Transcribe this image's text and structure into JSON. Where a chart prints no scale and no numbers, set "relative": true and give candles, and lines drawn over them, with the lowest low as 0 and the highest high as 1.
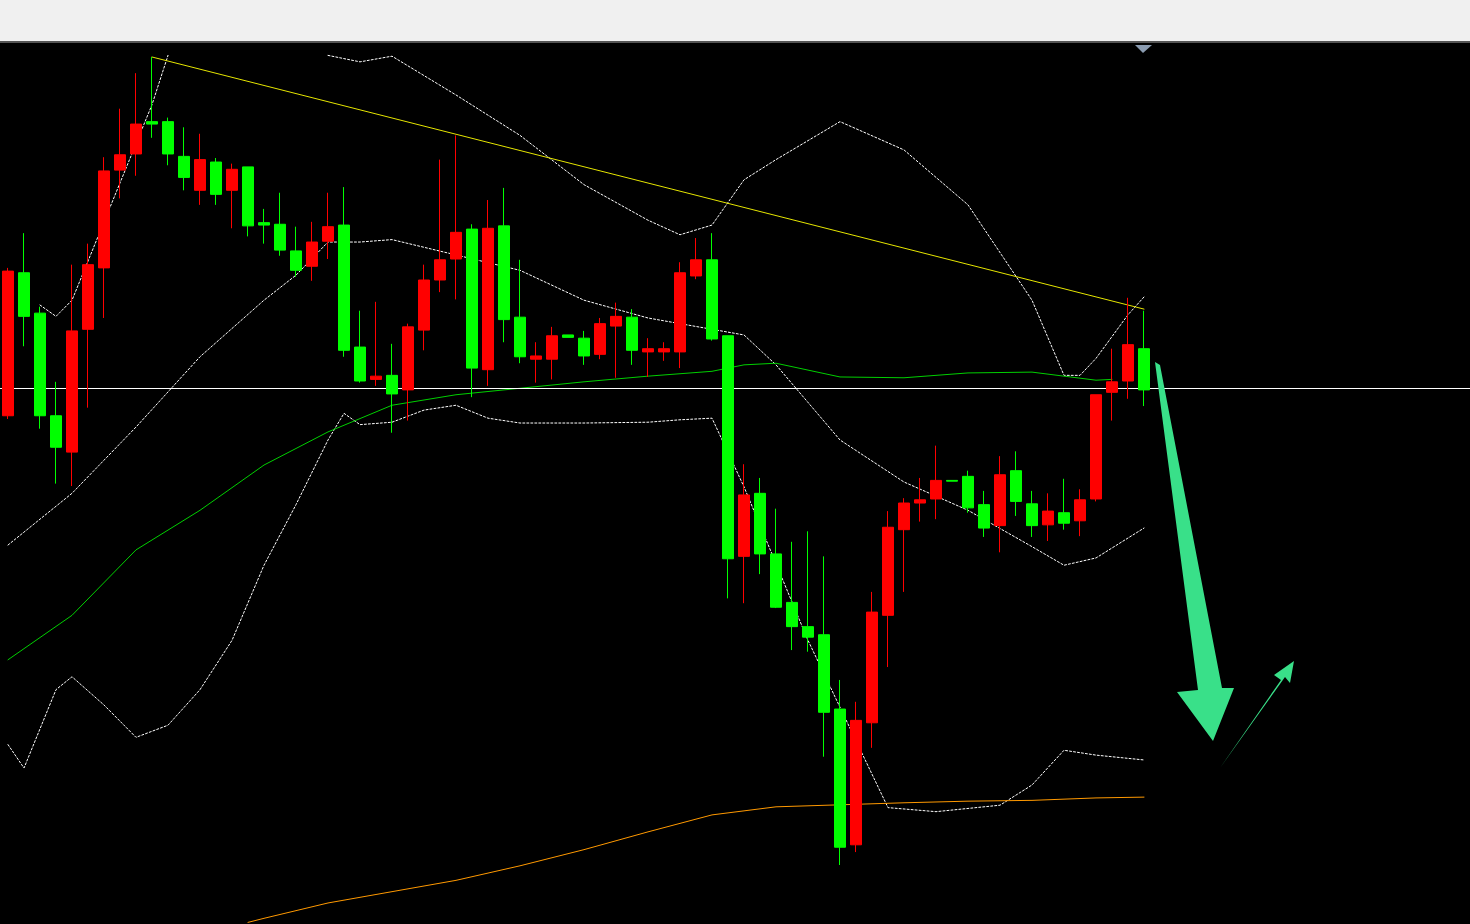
{
  "chart_data": {
    "type": "candlestick",
    "relative": true,
    "marker": "none",
    "categories": [
      null,
      null,
      null,
      null,
      null,
      null,
      null,
      null,
      null,
      null,
      null,
      null,
      null,
      null,
      null,
      null,
      null,
      null,
      null,
      null,
      null,
      null,
      null,
      null,
      null,
      null,
      null,
      null,
      null,
      null,
      null,
      null,
      null,
      null,
      null,
      null,
      null,
      null,
      null,
      null,
      null,
      null,
      null,
      null,
      null,
      null,
      null,
      null,
      null,
      null,
      null,
      null,
      null,
      null,
      null,
      null,
      null,
      null,
      null,
      null,
      null,
      null,
      null,
      null,
      null,
      null,
      null,
      null,
      null,
      null,
      null,
      null
    ],
    "series": [
      {
        "ohlc": [
          [
            0.556,
            0.739,
            0.552,
            0.735
          ],
          [
            0.733,
            0.782,
            0.642,
            0.679
          ],
          [
            0.683,
            0.691,
            0.54,
            0.556
          ],
          [
            0.556,
            0.598,
            0.472,
            0.517
          ],
          [
            0.511,
            0.743,
            0.469,
            0.661
          ],
          [
            0.663,
            0.769,
            0.566,
            0.743
          ],
          [
            0.739,
            0.876,
            0.677,
            0.859
          ],
          [
            0.86,
            0.936,
            0.825,
            0.879
          ],
          [
            0.88,
            0.98,
            0.853,
            0.917
          ],
          [
            0.92,
            1,
            0.9,
            0.917
          ],
          [
            0.92,
            0.925,
            0.866,
            0.88
          ],
          [
            0.877,
            0.913,
            0.835,
            0.851
          ],
          [
            0.835,
            0.905,
            0.817,
            0.873
          ],
          [
            0.87,
            0.875,
            0.817,
            0.83
          ],
          [
            0.835,
            0.868,
            0.788,
            0.861
          ],
          [
            0.864,
            0.864,
            0.778,
            0.791
          ],
          [
            0.795,
            0.812,
            0.769,
            0.792
          ],
          [
            0.793,
            0.832,
            0.754,
            0.761
          ],
          [
            0.76,
            0.79,
            0.728,
            0.736
          ],
          [
            0.741,
            0.796,
            0.723,
            0.771
          ],
          [
            0.772,
            0.832,
            0.75,
            0.79
          ],
          [
            0.792,
            0.839,
            0.629,
            0.637
          ],
          [
            0.641,
            0.686,
            0.597,
            0.599
          ],
          [
            0.601,
            0.697,
            0.593,
            0.605
          ],
          [
            0.606,
            0.645,
            0.535,
            0.583
          ],
          [
            0.588,
            0.67,
            0.55,
            0.666
          ],
          [
            0.662,
            0.743,
            0.637,
            0.724
          ],
          [
            0.724,
            0.873,
            0.709,
            0.749
          ],
          [
            0.75,
            0.903,
            0.7,
            0.783
          ],
          [
            0.787,
            0.793,
            0.579,
            0.615
          ],
          [
            0.613,
            0.823,
            0.593,
            0.788
          ],
          [
            0.791,
            0.838,
            0.647,
            0.675
          ],
          [
            0.678,
            0.749,
            0.621,
            0.629
          ],
          [
            0.626,
            0.647,
            0.597,
            0.63
          ],
          [
            0.626,
            0.666,
            0.601,
            0.655
          ],
          [
            0.656,
            0.656,
            0.653,
            0.653
          ],
          [
            0.652,
            0.661,
            0.619,
            0.63
          ],
          [
            0.632,
            0.677,
            0.626,
            0.67
          ],
          [
            0.667,
            0.696,
            0.603,
            0.679
          ],
          [
            0.678,
            0.688,
            0.619,
            0.637
          ],
          [
            0.635,
            0.652,
            0.604,
            0.639
          ],
          [
            0.635,
            0.647,
            0.624,
            0.639
          ],
          [
            0.635,
            0.746,
            0.615,
            0.733
          ],
          [
            0.729,
            0.776,
            0.725,
            0.749
          ],
          [
            0.749,
            0.782,
            0.649,
            0.651
          ],
          [
            0.655,
            0.655,
            0.33,
            0.379
          ],
          [
            0.382,
            0.496,
            0.324,
            0.458
          ],
          [
            0.46,
            0.479,
            0.36,
            0.385
          ],
          [
            0.385,
            0.441,
            0.318,
            0.319
          ],
          [
            0.325,
            0.4,
            0.266,
            0.295
          ],
          [
            0.295,
            0.413,
            0.264,
            0.282
          ],
          [
            0.285,
            0.382,
            0.134,
            0.189
          ],
          [
            0.193,
            0.229,
            0,
            0.022
          ],
          [
            0.025,
            0.202,
            0.016,
            0.179
          ],
          [
            0.176,
            0.338,
            0.145,
            0.313
          ],
          [
            0.309,
            0.438,
            0.245,
            0.418
          ],
          [
            0.415,
            0.454,
            0.338,
            0.448
          ],
          [
            0.448,
            0.479,
            0.425,
            0.452
          ],
          [
            0.453,
            0.519,
            0.428,
            0.476
          ],
          [
            0.476,
            0.476,
            0.475,
            0.475
          ],
          [
            0.481,
            0.488,
            0.436,
            0.442
          ],
          [
            0.446,
            0.463,
            0.406,
            0.417
          ],
          [
            0.42,
            0.506,
            0.387,
            0.483
          ],
          [
            0.488,
            0.512,
            0.432,
            0.45
          ],
          [
            0.447,
            0.463,
            0.406,
            0.42
          ],
          [
            0.421,
            0.46,
            0.401,
            0.438
          ],
          [
            0.436,
            0.478,
            0.415,
            0.423
          ],
          [
            0.426,
            0.465,
            0.407,
            0.452
          ],
          [
            0.453,
            0.582,
            0.45,
            0.582
          ],
          [
            0.585,
            0.639,
            0.55,
            0.598
          ],
          [
            0.599,
            0.702,
            0.577,
            0.644
          ],
          [
            0.639,
            0.686,
            0.568,
            0.588
          ]
        ],
        "colors": [
          "#ff0000",
          "#00ff00",
          "#00ff00",
          "#00ff00",
          "#ff0000",
          "#ff0000",
          "#ff0000",
          "#ff0000",
          "#ff0000",
          "#00ff00",
          "#00ff00",
          "#00ff00",
          "#ff0000",
          "#00ff00",
          "#ff0000",
          "#00ff00",
          "#00ff00",
          "#00ff00",
          "#00ff00",
          "#ff0000",
          "#ff0000",
          "#00ff00",
          "#00ff00",
          "#ff0000",
          "#00ff00",
          "#ff0000",
          "#ff0000",
          "#ff0000",
          "#ff0000",
          "#00ff00",
          "#ff0000",
          "#00ff00",
          "#00ff00",
          "#ff0000",
          "#ff0000",
          "#00ff00",
          "#00ff00",
          "#ff0000",
          "#ff0000",
          "#00ff00",
          "#ff0000",
          "#ff0000",
          "#ff0000",
          "#ff0000",
          "#00ff00",
          "#00ff00",
          "#ff0000",
          "#00ff00",
          "#00ff00",
          "#00ff00",
          "#00ff00",
          "#00ff00",
          "#00ff00",
          "#ff0000",
          "#ff0000",
          "#ff0000",
          "#ff0000",
          "#ff0000",
          "#ff0000",
          "#00ff00",
          "#00ff00",
          "#00ff00",
          "#ff0000",
          "#00ff00",
          "#00ff00",
          "#ff0000",
          "#00ff00",
          "#ff0000",
          "#ff0000",
          "#ff0000",
          "#ff0000",
          "#00ff00"
        ]
      },
      {
        "type": "line",
        "color": "#ffffff",
        "line_style": "dotted",
        "values": [
          null,
          null,
          0.693,
          0.679,
          0.699,
          null,
          null,
          null,
          null,
          0.941,
          1.002,
          null,
          null,
          null,
          null,
          null,
          null,
          null,
          null,
          null,
          null,
          null,
          null,
          null,
          null,
          null,
          null,
          null,
          null,
          null,
          null,
          null,
          null,
          null,
          null,
          null,
          null,
          null,
          null,
          null,
          null,
          null,
          null,
          null,
          null,
          null,
          null,
          null,
          null,
          null,
          null,
          null,
          null,
          null,
          null,
          null,
          null,
          null,
          null,
          null,
          null,
          null,
          null,
          null,
          null,
          null,
          null,
          null,
          null,
          null,
          null,
          null
        ]
      },
      {
        "type": "line",
        "color": "#ffffff",
        "line_style": "dotted",
        "values": [
          null,
          null,
          null,
          null,
          null,
          null,
          null,
          null,
          null,
          null,
          null,
          null,
          null,
          null,
          null,
          null,
          null,
          null,
          null,
          null,
          1.002,
          null,
          0.994,
          null,
          1.001,
          null,
          null,
          null,
          0.953,
          null,
          null,
          null,
          0.903,
          null,
          null,
          null,
          0.842,
          null,
          null,
          null,
          0.798,
          null,
          0.78,
          null,
          0.792,
          null,
          0.848,
          null,
          0.873,
          null,
          null,
          null,
          0.92,
          null,
          null,
          null,
          0.885,
          null,
          null,
          null,
          0.817,
          null,
          null,
          null,
          0.699,
          null,
          0.606,
          0.606,
          0.627,
          null,
          0.681,
          0.703
        ]
      },
      {
        "type": "line",
        "color": "#ffffff",
        "line_style": "dotted",
        "values": [
          0.396,
          null,
          null,
          null,
          0.46,
          null,
          null,
          null,
          0.542,
          null,
          null,
          null,
          0.629,
          null,
          null,
          null,
          0.699,
          null,
          0.73,
          null,
          0.771,
          null,
          0.771,
          null,
          0.774,
          null,
          null,
          null,
          null,
          null,
          null,
          null,
          0.736,
          null,
          null,
          null,
          0.699,
          null,
          null,
          null,
          0.677,
          null,
          null,
          null,
          null,
          null,
          0.656,
          null,
          0.619,
          null,
          null,
          null,
          0.526,
          null,
          null,
          null,
          0.474,
          null,
          null,
          null,
          0.439,
          null,
          null,
          null,
          0.394,
          null,
          0.371,
          null,
          0.38,
          null,
          null,
          0.417
        ]
      },
      {
        "type": "line",
        "color": "#ffffff",
        "line_style": "dotted",
        "values": [
          0.149,
          0.12,
          null,
          0.217,
          0.233,
          null,
          0.198,
          null,
          0.158,
          null,
          0.173,
          null,
          0.217,
          null,
          0.278,
          null,
          0.371,
          null,
          0.446,
          null,
          0.526,
          0.559,
          0.545,
          null,
          0.548,
          null,
          0.563,
          null,
          0.569,
          null,
          0.553,
          null,
          0.547,
          null,
          null,
          null,
          0.547,
          null,
          null,
          null,
          0.548,
          null,
          0.551,
          null,
          0.553,
          null,
          0.468,
          null,
          null,
          null,
          0.278,
          null,
          null,
          null,
          null,
          0.071,
          null,
          null,
          0.066,
          null,
          null,
          null,
          0.074,
          null,
          0.099,
          null,
          0.142,
          null,
          0.136,
          null,
          null,
          0.13
        ]
      },
      {
        "type": "line",
        "color": "#00d000",
        "line_style": "solid",
        "values": [
          0.254,
          null,
          null,
          null,
          0.309,
          null,
          null,
          null,
          0.39,
          null,
          null,
          null,
          0.439,
          null,
          null,
          null,
          0.495,
          null,
          null,
          null,
          0.536,
          null,
          null,
          null,
          0.569,
          null,
          null,
          null,
          0.582,
          null,
          null,
          null,
          0.59,
          null,
          null,
          null,
          0.598,
          null,
          null,
          null,
          0.605,
          null,
          null,
          null,
          0.611,
          null,
          0.619,
          null,
          0.621,
          null,
          null,
          null,
          0.604,
          null,
          null,
          null,
          0.603,
          null,
          null,
          null,
          0.609,
          null,
          null,
          null,
          0.61,
          null,
          0.605,
          null,
          0.6,
          0.601,
          null,
          null
        ]
      },
      {
        "type": "line",
        "color": "#ff9900",
        "line_style": "solid",
        "values": [
          null,
          null,
          null,
          null,
          null,
          null,
          null,
          null,
          null,
          null,
          null,
          null,
          null,
          null,
          null,
          -0.071,
          -0.066,
          null,
          null,
          null,
          -0.047,
          null,
          null,
          null,
          -0.033,
          null,
          null,
          null,
          -0.019,
          null,
          null,
          null,
          -0.001,
          null,
          null,
          null,
          0.019,
          null,
          null,
          null,
          0.041,
          null,
          null,
          null,
          0.062,
          null,
          null,
          null,
          0.072,
          null,
          null,
          null,
          null,
          null,
          null,
          null,
          0.077,
          null,
          null,
          null,
          0.079,
          null,
          null,
          null,
          0.08,
          null,
          null,
          null,
          0.083,
          null,
          null,
          0.084
        ]
      },
      {
        "type": "line",
        "color": "#e6e600",
        "line_style": "solid",
        "values": [
          null,
          null,
          null,
          null,
          null,
          null,
          null,
          null,
          null,
          1,
          null,
          null,
          null,
          null,
          null,
          null,
          null,
          null,
          null,
          null,
          null,
          null,
          null,
          null,
          null,
          null,
          null,
          null,
          null,
          null,
          null,
          null,
          null,
          null,
          null,
          null,
          null,
          null,
          null,
          null,
          null,
          null,
          null,
          null,
          null,
          null,
          null,
          null,
          null,
          null,
          null,
          null,
          null,
          null,
          null,
          null,
          null,
          null,
          null,
          null,
          null,
          null,
          null,
          null,
          null,
          null,
          null,
          null,
          null,
          null,
          null,
          0.688
        ]
      }
    ],
    "ref_lines": [
      {
        "axis": "y",
        "value": 0.59,
        "color": "#ffffff",
        "line_style": "solid"
      }
    ]
  }
}
